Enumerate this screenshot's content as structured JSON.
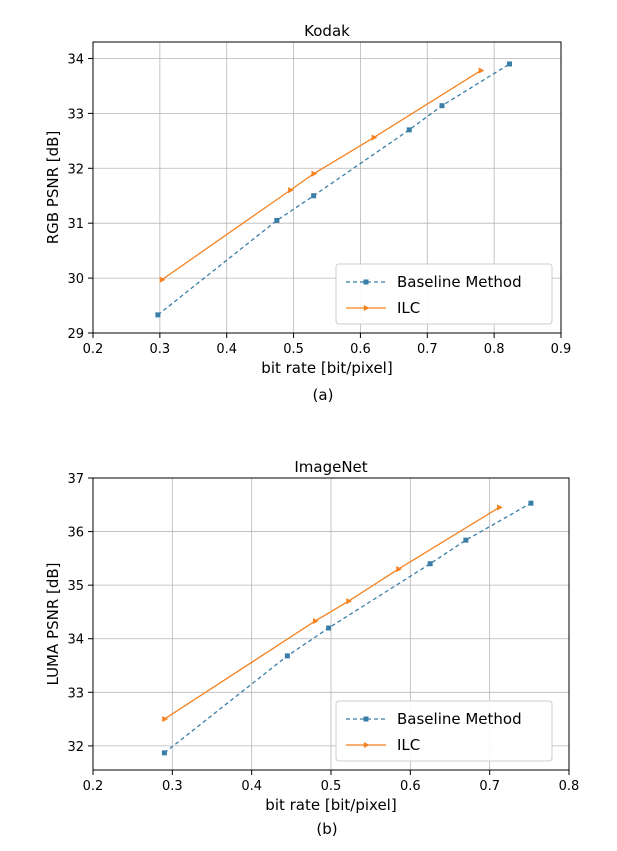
{
  "chart_data": [
    {
      "type": "line",
      "title": "Kodak",
      "xlabel": "bit rate [bit/pixel]",
      "ylabel": "RGB PSNR [dB]",
      "caption": "(a)",
      "xlim": [
        0.2,
        0.9
      ],
      "ylim": [
        29,
        34.3
      ],
      "xticks": [
        0.2,
        0.3,
        0.4,
        0.5,
        0.6,
        0.7,
        0.8,
        0.9
      ],
      "yticks": [
        29,
        30,
        31,
        32,
        33,
        34
      ],
      "xtick_labels": [
        "0.2",
        "0.3",
        "0.4",
        "0.5",
        "0.6",
        "0.7",
        "0.8",
        "0.9"
      ],
      "ytick_labels": [
        "29",
        "30",
        "31",
        "32",
        "33",
        "34"
      ],
      "grid": true,
      "legend_position": "bottom-right",
      "series": [
        {
          "name": "Baseline Method",
          "color": "#3a7ea8",
          "line_style": "dashed",
          "marker": "square",
          "x": [
            0.297,
            0.475,
            0.53,
            0.673,
            0.722,
            0.823
          ],
          "y": [
            29.33,
            31.05,
            31.5,
            32.7,
            33.14,
            33.9
          ]
        },
        {
          "name": "ILC",
          "color": "#f5821f",
          "line_style": "solid",
          "marker": "triangle",
          "x": [
            0.303,
            0.495,
            0.53,
            0.62,
            0.78
          ],
          "y": [
            29.97,
            31.6,
            31.9,
            32.56,
            33.78
          ]
        }
      ]
    },
    {
      "type": "line",
      "title": "ImageNet",
      "xlabel": "bit rate [bit/pixel]",
      "ylabel": "LUMA PSNR [dB]",
      "caption": "(b)",
      "xlim": [
        0.2,
        0.8
      ],
      "ylim": [
        31.55,
        37
      ],
      "xticks": [
        0.2,
        0.3,
        0.4,
        0.5,
        0.6,
        0.7,
        0.8
      ],
      "yticks": [
        32,
        33,
        34,
        35,
        36,
        37
      ],
      "xtick_labels": [
        "0.2",
        "0.3",
        "0.4",
        "0.5",
        "0.6",
        "0.7",
        "0.8"
      ],
      "ytick_labels": [
        "32",
        "33",
        "34",
        "35",
        "36",
        "37"
      ],
      "grid": true,
      "legend_position": "bottom-right",
      "series": [
        {
          "name": "Baseline Method",
          "color": "#3a7ea8",
          "line_style": "dashed",
          "marker": "square",
          "x": [
            0.29,
            0.445,
            0.497,
            0.625,
            0.67,
            0.752
          ],
          "y": [
            31.87,
            33.68,
            34.2,
            35.4,
            35.84,
            36.53
          ]
        },
        {
          "name": "ILC",
          "color": "#f5821f",
          "line_style": "solid",
          "marker": "triangle",
          "x": [
            0.29,
            0.48,
            0.522,
            0.585,
            0.712
          ],
          "y": [
            32.5,
            34.33,
            34.7,
            35.3,
            36.45
          ]
        }
      ]
    }
  ]
}
